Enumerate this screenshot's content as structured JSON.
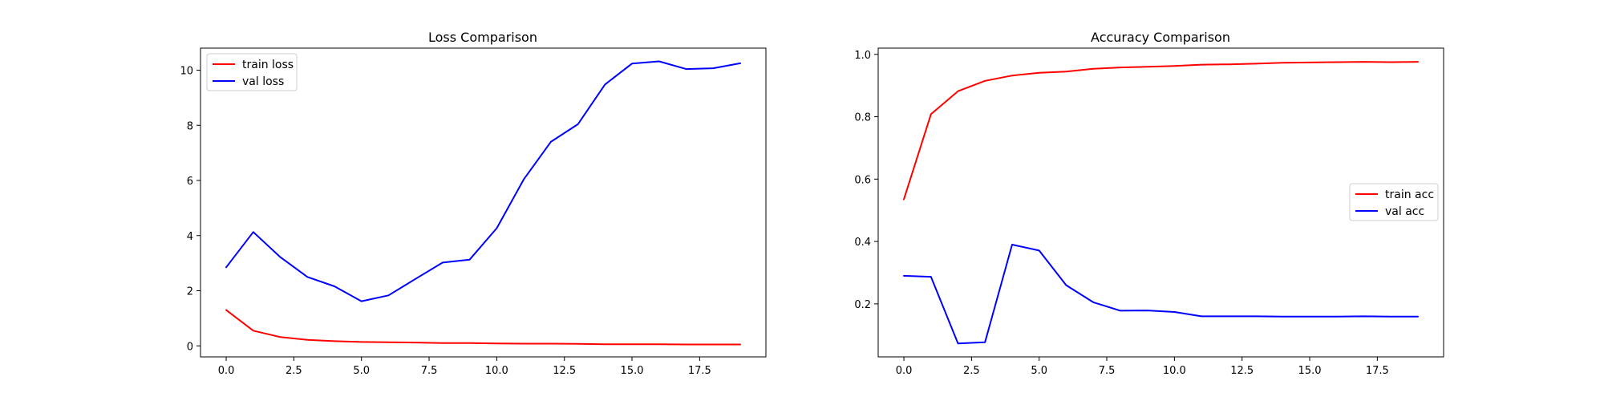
{
  "chart_data": [
    {
      "type": "line",
      "title": "Loss Comparison",
      "xlabel": "",
      "ylabel": "",
      "xlim": [
        -0.95,
        19.95
      ],
      "ylim": [
        -0.4,
        10.8
      ],
      "xticks": [
        0.0,
        2.5,
        5.0,
        7.5,
        10.0,
        12.5,
        15.0,
        17.5
      ],
      "xtick_labels": [
        "0.0",
        "2.5",
        "5.0",
        "7.5",
        "10.0",
        "12.5",
        "15.0",
        "17.5"
      ],
      "yticks": [
        0,
        2,
        4,
        6,
        8,
        10
      ],
      "ytick_labels": [
        "0",
        "2",
        "4",
        "6",
        "8",
        "10"
      ],
      "grid": false,
      "legend_position": "upper-left",
      "x": [
        0,
        1,
        2,
        3,
        4,
        5,
        6,
        7,
        8,
        9,
        10,
        11,
        12,
        13,
        14,
        15,
        16,
        17,
        18,
        19
      ],
      "series": [
        {
          "name": "train loss",
          "color": "#ff0000",
          "values": [
            1.3,
            0.55,
            0.32,
            0.22,
            0.17,
            0.14,
            0.13,
            0.12,
            0.1,
            0.1,
            0.09,
            0.08,
            0.08,
            0.07,
            0.06,
            0.06,
            0.06,
            0.05,
            0.05,
            0.05
          ]
        },
        {
          "name": "val loss",
          "color": "#0000ff",
          "values": [
            2.85,
            4.13,
            3.22,
            2.5,
            2.16,
            1.62,
            1.83,
            2.43,
            3.02,
            3.13,
            4.27,
            6.04,
            7.4,
            8.04,
            9.48,
            10.24,
            10.32,
            10.04,
            10.07,
            10.25
          ]
        }
      ]
    },
    {
      "type": "line",
      "title": "Accuracy Comparison",
      "xlabel": "",
      "ylabel": "",
      "xlim": [
        -0.95,
        19.95
      ],
      "ylim": [
        0.03,
        1.02
      ],
      "xticks": [
        0.0,
        2.5,
        5.0,
        7.5,
        10.0,
        12.5,
        15.0,
        17.5
      ],
      "xtick_labels": [
        "0.0",
        "2.5",
        "5.0",
        "7.5",
        "10.0",
        "12.5",
        "15.0",
        "17.5"
      ],
      "yticks": [
        0.2,
        0.4,
        0.6,
        0.8,
        1.0
      ],
      "ytick_labels": [
        "0.2",
        "0.4",
        "0.6",
        "0.8",
        "1.0"
      ],
      "grid": false,
      "legend_position": "center-right",
      "x": [
        0,
        1,
        2,
        3,
        4,
        5,
        6,
        7,
        8,
        9,
        10,
        11,
        12,
        13,
        14,
        15,
        16,
        17,
        18,
        19
      ],
      "series": [
        {
          "name": "train acc",
          "color": "#ff0000",
          "values": [
            0.535,
            0.808,
            0.882,
            0.915,
            0.932,
            0.941,
            0.945,
            0.954,
            0.958,
            0.96,
            0.963,
            0.967,
            0.968,
            0.97,
            0.973,
            0.974,
            0.975,
            0.976,
            0.975,
            0.976
          ]
        },
        {
          "name": "val acc",
          "color": "#0000ff",
          "values": [
            0.29,
            0.287,
            0.073,
            0.077,
            0.39,
            0.371,
            0.26,
            0.205,
            0.178,
            0.179,
            0.174,
            0.16,
            0.16,
            0.16,
            0.159,
            0.159,
            0.159,
            0.16,
            0.159,
            0.159
          ]
        }
      ]
    }
  ]
}
